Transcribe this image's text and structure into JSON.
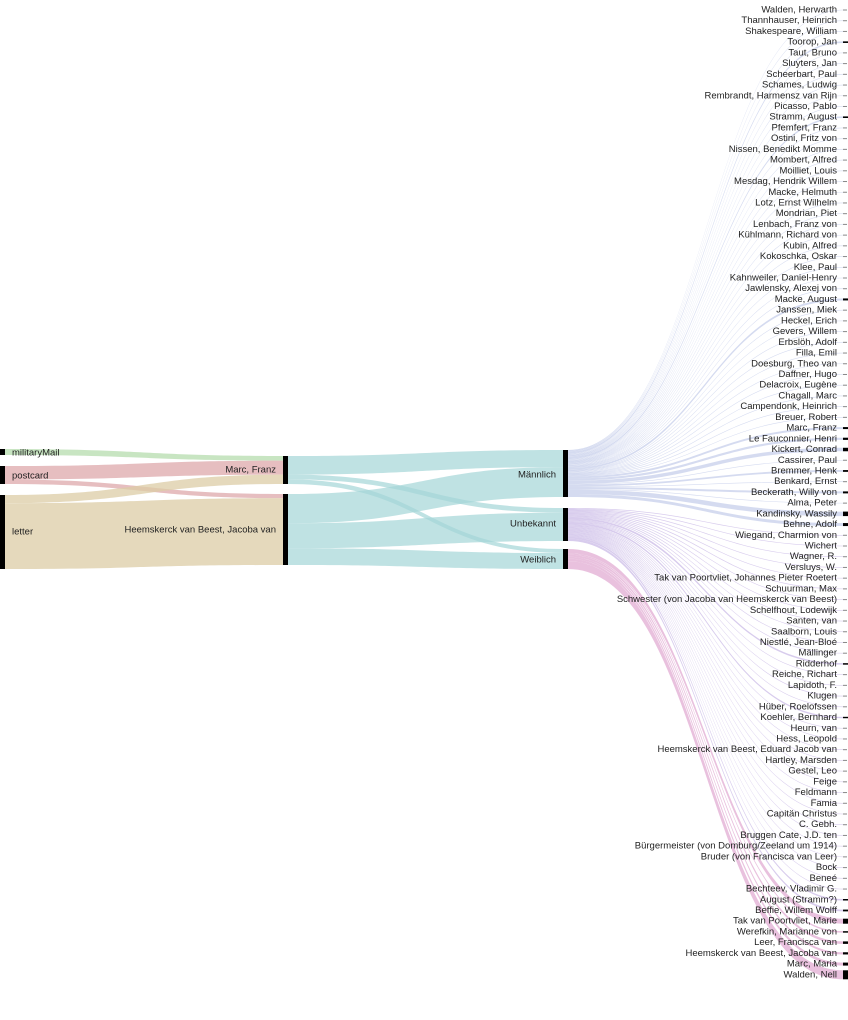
{
  "colors": {
    "militaryMail": "#b5dcae",
    "postcard": "#dda8ab",
    "letter": "#dccca6",
    "Männlich": "#a4d6d7",
    "Unbekannt": "#a4d6d7",
    "Weiblich": "#a4d6d7",
    "maleTargets": "#b3bde4",
    "unknownTargets": "#c7b6e6",
    "femaleTargets": "#e0a6d0",
    "node": "#000000",
    "tick": "#888888"
  },
  "columns": {
    "types": [
      "militaryMail",
      "postcard",
      "letter"
    ],
    "senders": [
      "Marc, Franz",
      "Heemskerck van Beest, Jacoba van"
    ],
    "genders": [
      "Männlich",
      "Unbekannt",
      "Weiblich"
    ]
  },
  "flows_type_sender": [
    {
      "source": "militaryMail",
      "target": "Marc, Franz",
      "value": 1
    },
    {
      "source": "postcard",
      "target": "Marc, Franz",
      "value": 3
    },
    {
      "source": "postcard",
      "target": "Heemskerck van Beest, Jacoba van",
      "value": 1
    },
    {
      "source": "letter",
      "target": "Marc, Franz",
      "value": 2
    },
    {
      "source": "letter",
      "target": "Heemskerck van Beest, Jacoba van",
      "value": 16
    }
  ],
  "flows_sender_gender": [
    {
      "source": "Marc, Franz",
      "target": "Männlich",
      "value": 4
    },
    {
      "source": "Marc, Franz",
      "target": "Unbekannt",
      "value": 1
    },
    {
      "source": "Marc, Franz",
      "target": "Weiblich",
      "value": 1
    },
    {
      "source": "Heemskerck van Beest, Jacoba van",
      "target": "Männlich",
      "value": 7
    },
    {
      "source": "Heemskerck van Beest, Jacoba van",
      "target": "Unbekannt",
      "value": 6
    },
    {
      "source": "Heemskerck van Beest, Jacoba van",
      "target": "Weiblich",
      "value": 4
    }
  ],
  "recipients": [
    {
      "name": "Walden, Herwarth",
      "group": "Männlich"
    },
    {
      "name": "Thannhauser, Heinrich",
      "group": "Männlich"
    },
    {
      "name": "Shakespeare, William",
      "group": "Männlich"
    },
    {
      "name": "Toorop, Jan",
      "group": "Männlich"
    },
    {
      "name": "Taut, Bruno",
      "group": "Männlich"
    },
    {
      "name": "Sluyters, Jan",
      "group": "Männlich"
    },
    {
      "name": "Scheerbart, Paul",
      "group": "Männlich"
    },
    {
      "name": "Schames, Ludwig",
      "group": "Männlich"
    },
    {
      "name": "Rembrandt, Harmensz van Rijn",
      "group": "Männlich"
    },
    {
      "name": "Picasso, Pablo",
      "group": "Männlich"
    },
    {
      "name": "Stramm, August",
      "group": "Männlich"
    },
    {
      "name": "Pfemfert, Franz",
      "group": "Männlich"
    },
    {
      "name": "Ostini, Fritz von",
      "group": "Männlich"
    },
    {
      "name": "Nissen, Benedikt Momme",
      "group": "Männlich"
    },
    {
      "name": "Mombert, Alfred",
      "group": "Männlich"
    },
    {
      "name": "Moilliet, Louis",
      "group": "Männlich"
    },
    {
      "name": "Mesdag, Hendrik Willem",
      "group": "Männlich"
    },
    {
      "name": "Macke, Helmuth",
      "group": "Männlich"
    },
    {
      "name": "Lotz, Ernst Wilhelm",
      "group": "Männlich"
    },
    {
      "name": "Mondrian, Piet",
      "group": "Männlich"
    },
    {
      "name": "Lenbach, Franz von",
      "group": "Männlich"
    },
    {
      "name": "Kühlmann, Richard von",
      "group": "Männlich"
    },
    {
      "name": "Kubin, Alfred",
      "group": "Männlich"
    },
    {
      "name": "Kokoschka, Oskar",
      "group": "Männlich"
    },
    {
      "name": "Klee, Paul",
      "group": "Männlich"
    },
    {
      "name": "Kahnweiler, Daniel-Henry",
      "group": "Männlich"
    },
    {
      "name": "Jawlensky, Alexej von",
      "group": "Männlich"
    },
    {
      "name": "Macke, August",
      "group": "Männlich"
    },
    {
      "name": "Janssen, Miek",
      "group": "Männlich"
    },
    {
      "name": "Heckel, Erich",
      "group": "Männlich"
    },
    {
      "name": "Gevers, Willem",
      "group": "Männlich"
    },
    {
      "name": "Erbslöh, Adolf",
      "group": "Männlich"
    },
    {
      "name": "Filla, Emil",
      "group": "Männlich"
    },
    {
      "name": "Doesburg, Theo van",
      "group": "Männlich"
    },
    {
      "name": "Daffner, Hugo",
      "group": "Männlich"
    },
    {
      "name": "Delacroix, Eugène",
      "group": "Männlich"
    },
    {
      "name": "Chagall, Marc",
      "group": "Männlich"
    },
    {
      "name": "Campendonk, Heinrich",
      "group": "Männlich"
    },
    {
      "name": "Breuer, Robert",
      "group": "Männlich"
    },
    {
      "name": "Marc, Franz",
      "group": "Männlich"
    },
    {
      "name": "Le Fauconnier, Henri",
      "group": "Männlich"
    },
    {
      "name": "Kickert, Conrad",
      "group": "Männlich"
    },
    {
      "name": "Cassirer, Paul",
      "group": "Männlich"
    },
    {
      "name": "Bremmer, Henk",
      "group": "Männlich"
    },
    {
      "name": "Benkard, Ernst",
      "group": "Männlich"
    },
    {
      "name": "Beckerath, Willy von",
      "group": "Männlich"
    },
    {
      "name": "Alma, Peter",
      "group": "Männlich"
    },
    {
      "name": "Kandinsky, Wassily",
      "group": "Männlich"
    },
    {
      "name": "Behne, Adolf",
      "group": "Männlich"
    },
    {
      "name": "Wiegand, Charmion von",
      "group": "Unbekannt"
    },
    {
      "name": "Wichert",
      "group": "Unbekannt"
    },
    {
      "name": "Wagner, R.",
      "group": "Unbekannt"
    },
    {
      "name": "Versluys, W.",
      "group": "Unbekannt"
    },
    {
      "name": "Tak van Poortvliet, Johannes Pieter Roetert",
      "group": "Unbekannt"
    },
    {
      "name": "Schuurman, Max",
      "group": "Unbekannt"
    },
    {
      "name": "Schwester (von Jacoba van Heemskerck van Beest)",
      "group": "Unbekannt"
    },
    {
      "name": "Schelfhout, Lodewijk",
      "group": "Unbekannt"
    },
    {
      "name": "Santen, van",
      "group": "Unbekannt"
    },
    {
      "name": "Saalborn, Louis",
      "group": "Unbekannt"
    },
    {
      "name": "Niestlé, Jean-Bloé",
      "group": "Unbekannt"
    },
    {
      "name": "Mällinger",
      "group": "Unbekannt"
    },
    {
      "name": "Ridderhof",
      "group": "Unbekannt"
    },
    {
      "name": "Reiche, Richart",
      "group": "Unbekannt"
    },
    {
      "name": "Lapidoth, F.",
      "group": "Unbekannt"
    },
    {
      "name": "Klugen",
      "group": "Unbekannt"
    },
    {
      "name": "Hüber, Roelofssen",
      "group": "Unbekannt"
    },
    {
      "name": "Koehler, Bernhard",
      "group": "Unbekannt"
    },
    {
      "name": "Heurn, van",
      "group": "Unbekannt"
    },
    {
      "name": "Hess, Leopold",
      "group": "Unbekannt"
    },
    {
      "name": "Heemskerck van Beest, Eduard Jacob van",
      "group": "Unbekannt"
    },
    {
      "name": "Hartley, Marsden",
      "group": "Unbekannt"
    },
    {
      "name": "Gestel, Leo",
      "group": "Unbekannt"
    },
    {
      "name": "Feige",
      "group": "Unbekannt"
    },
    {
      "name": "Feldmann",
      "group": "Unbekannt"
    },
    {
      "name": "Famia",
      "group": "Unbekannt"
    },
    {
      "name": "Capitän Christus",
      "group": "Unbekannt"
    },
    {
      "name": "C. Gebh.",
      "group": "Unbekannt"
    },
    {
      "name": "Bruggen Cate, J.D. ten",
      "group": "Unbekannt"
    },
    {
      "name": "Bürgermeister (von Domburg/Zeeland um 1914)",
      "group": "Unbekannt"
    },
    {
      "name": "Bruder (von Francisca van Leer)",
      "group": "Unbekannt"
    },
    {
      "name": "Bock",
      "group": "Unbekannt"
    },
    {
      "name": "Beneé",
      "group": "Unbekannt"
    },
    {
      "name": "Bechteev, Vladimir G.",
      "group": "Unbekannt"
    },
    {
      "name": "August (Stramm?)",
      "group": "Unbekannt"
    },
    {
      "name": "Beffie, Willem Wolff",
      "group": "Unbekannt"
    },
    {
      "name": "Tak van Poortvliet, Marie",
      "group": "Weiblich"
    },
    {
      "name": "Werefkin, Marianne von",
      "group": "Weiblich"
    },
    {
      "name": "Leer, Francisca van",
      "group": "Weiblich"
    },
    {
      "name": "Heemskerck van Beest, Jacoba van",
      "group": "Weiblich"
    },
    {
      "name": "Marc, Maria",
      "group": "Weiblich"
    },
    {
      "name": "Walden, Nell",
      "group": "Weiblich"
    }
  ]
}
